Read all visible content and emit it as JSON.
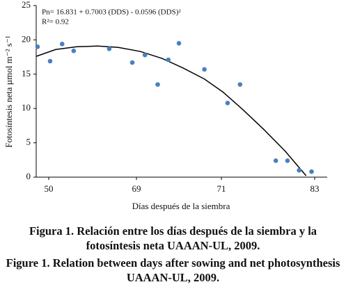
{
  "chart_data": {
    "type": "scatter",
    "equation": "Pn= 16.831 + 0.7003 (DDS) - 0.0596 (DDS)²",
    "r_squared": "R²= 0.92",
    "xlabel": "Días después de la siembra",
    "ylabel": "Fotosíntesis neta µmol m⁻² s⁻¹",
    "x": [
      47.6,
      50.3,
      52.9,
      55.4,
      63.1,
      68.1,
      69.2,
      69.5,
      69.75,
      70.0,
      70.6,
      71.8,
      73.4,
      78.0,
      79.5,
      81.0,
      82.6
    ],
    "values": [
      19.0,
      16.9,
      19.4,
      18.4,
      18.7,
      16.7,
      17.8,
      13.5,
      17.1,
      19.5,
      15.7,
      10.8,
      13.5,
      2.4,
      2.4,
      1.0,
      0.8
    ],
    "color": "#4a7fc1",
    "fit": {
      "x": [
        47.3,
        51.5,
        56.1,
        60.6,
        65.1,
        69.1,
        69.6,
        70.1,
        70.6,
        71.2,
        73.8,
        76.5,
        79.2,
        81.9
      ],
      "values": [
        17.6,
        18.6,
        19.0,
        19.1,
        18.9,
        18.3,
        17.3,
        15.9,
        14.3,
        12.4,
        9.8,
        6.9,
        3.8,
        0.2
      ],
      "color": "#000000"
    },
    "xlim": [
      47.3,
      84.6
    ],
    "xticks": [
      50,
      69,
      71,
      83
    ],
    "ylim": [
      0,
      25
    ],
    "yticks": [
      0,
      5,
      10,
      15,
      20,
      25
    ]
  },
  "caption": [
    "Figura 1. Relación entre los días después de la siembra y la fotosíntesis neta UAAAN-UL, 2009.",
    "Figure 1. Relation between days after sowing and net photosynthesis UAAAN-UL, 2009."
  ]
}
